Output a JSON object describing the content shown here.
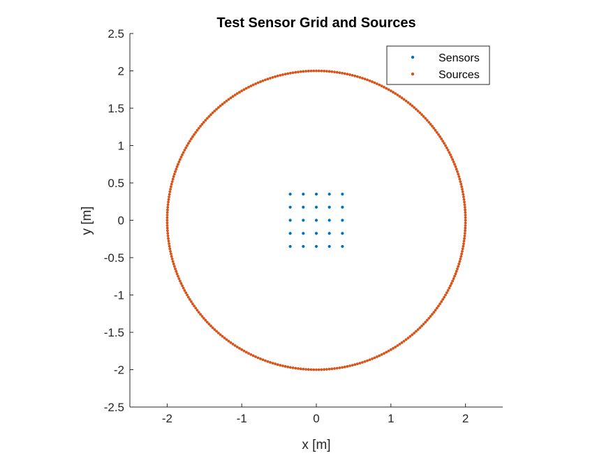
{
  "chart_data": {
    "type": "scatter",
    "title": "Test Sensor Grid and Sources",
    "xlabel": "x [m]",
    "ylabel": "y [m]",
    "xlim": [
      -2.5,
      2.5
    ],
    "ylim": [
      -2.5,
      2.5
    ],
    "xticks": [
      -2,
      -1,
      0,
      1,
      2
    ],
    "xtick_labels": [
      "-2",
      "-1",
      "0",
      "1",
      "2"
    ],
    "yticks": [
      -2.5,
      -2,
      -1.5,
      -1,
      -0.5,
      0,
      0.5,
      1,
      1.5,
      2,
      2.5
    ],
    "ytick_labels": [
      "-2.5",
      "-2",
      "-1.5",
      "-1",
      "-0.5",
      "0",
      "0.5",
      "1",
      "1.5",
      "2",
      "2.5"
    ],
    "grid": false,
    "legend_position": "top-right",
    "series": [
      {
        "name": "Sensors",
        "color": "#0072BD",
        "grid_axis_values": [
          -0.35,
          -0.175,
          0,
          0.175,
          0.35
        ],
        "layout": "5x5 grid"
      },
      {
        "name": "Sources",
        "color": "#D95319",
        "shape": "circle",
        "center": [
          0,
          0
        ],
        "radius": 2,
        "count": 360
      }
    ]
  }
}
